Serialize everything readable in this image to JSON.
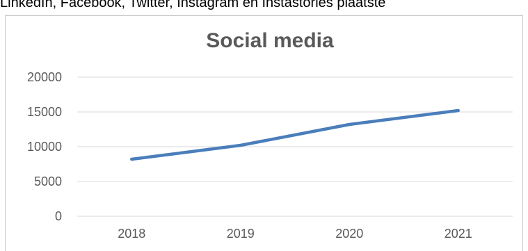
{
  "document": {
    "visible_text": "LinkedIn, Facebook, Twitter, Instagram en Instastories plaatste"
  },
  "chart_data": {
    "type": "line",
    "title": "Social media",
    "xlabel": "",
    "ylabel": "",
    "categories": [
      "2018",
      "2019",
      "2020",
      "2021"
    ],
    "series": [
      {
        "values": [
          8200,
          10200,
          13200,
          15200
        ]
      }
    ],
    "ylim": [
      0,
      20000
    ],
    "yticks": [
      0,
      5000,
      10000,
      15000,
      20000
    ],
    "grid": true,
    "legend": "none",
    "colors": {
      "line": "#4a7ebb",
      "grid": "#d9d9d9",
      "text": "#595959"
    }
  }
}
